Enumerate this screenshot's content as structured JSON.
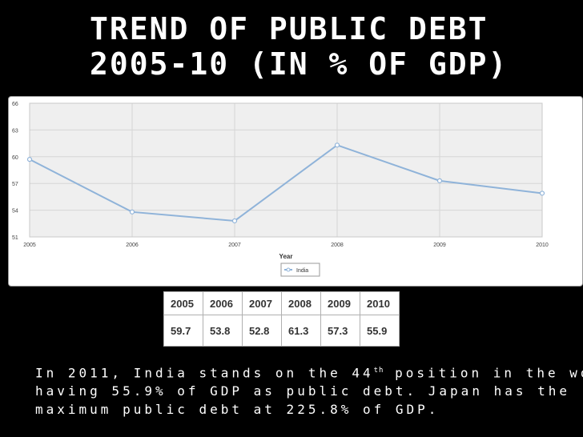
{
  "title": "Trend of Public Debt\n2005-10 (in % of GDP)",
  "chart_data": {
    "type": "line",
    "x": [
      2005,
      2006,
      2007,
      2008,
      2009,
      2010
    ],
    "series": [
      {
        "name": "India",
        "values": [
          59.7,
          53.8,
          52.8,
          61.3,
          57.3,
          55.9
        ]
      }
    ],
    "xlabel": "Year",
    "ylabel": "",
    "ylim": [
      51,
      66
    ],
    "yticks": [
      51,
      54,
      57,
      60,
      63,
      66
    ],
    "xticks": [
      2005,
      2006,
      2007,
      2008,
      2009,
      2010
    ],
    "grid": true,
    "legend": "bottom-center",
    "colors": {
      "line": "#8fb3d9",
      "plot_bg": "#efefef",
      "grid": "#d6d6d6"
    }
  },
  "table": {
    "years": [
      "2005",
      "2006",
      "2007",
      "2008",
      "2009",
      "2010"
    ],
    "values": [
      "59.7",
      "53.8",
      "52.8",
      "61.3",
      "57.3",
      "55.9"
    ]
  },
  "caption": {
    "line1_before": "In 2011, India stands on the 44",
    "line1_sup": "th",
    "line1_after": " position in the world",
    "line2": "having 55.9% of GDP as public debt. Japan has the",
    "line3": "maximum public debt at 225.8% of GDP."
  }
}
